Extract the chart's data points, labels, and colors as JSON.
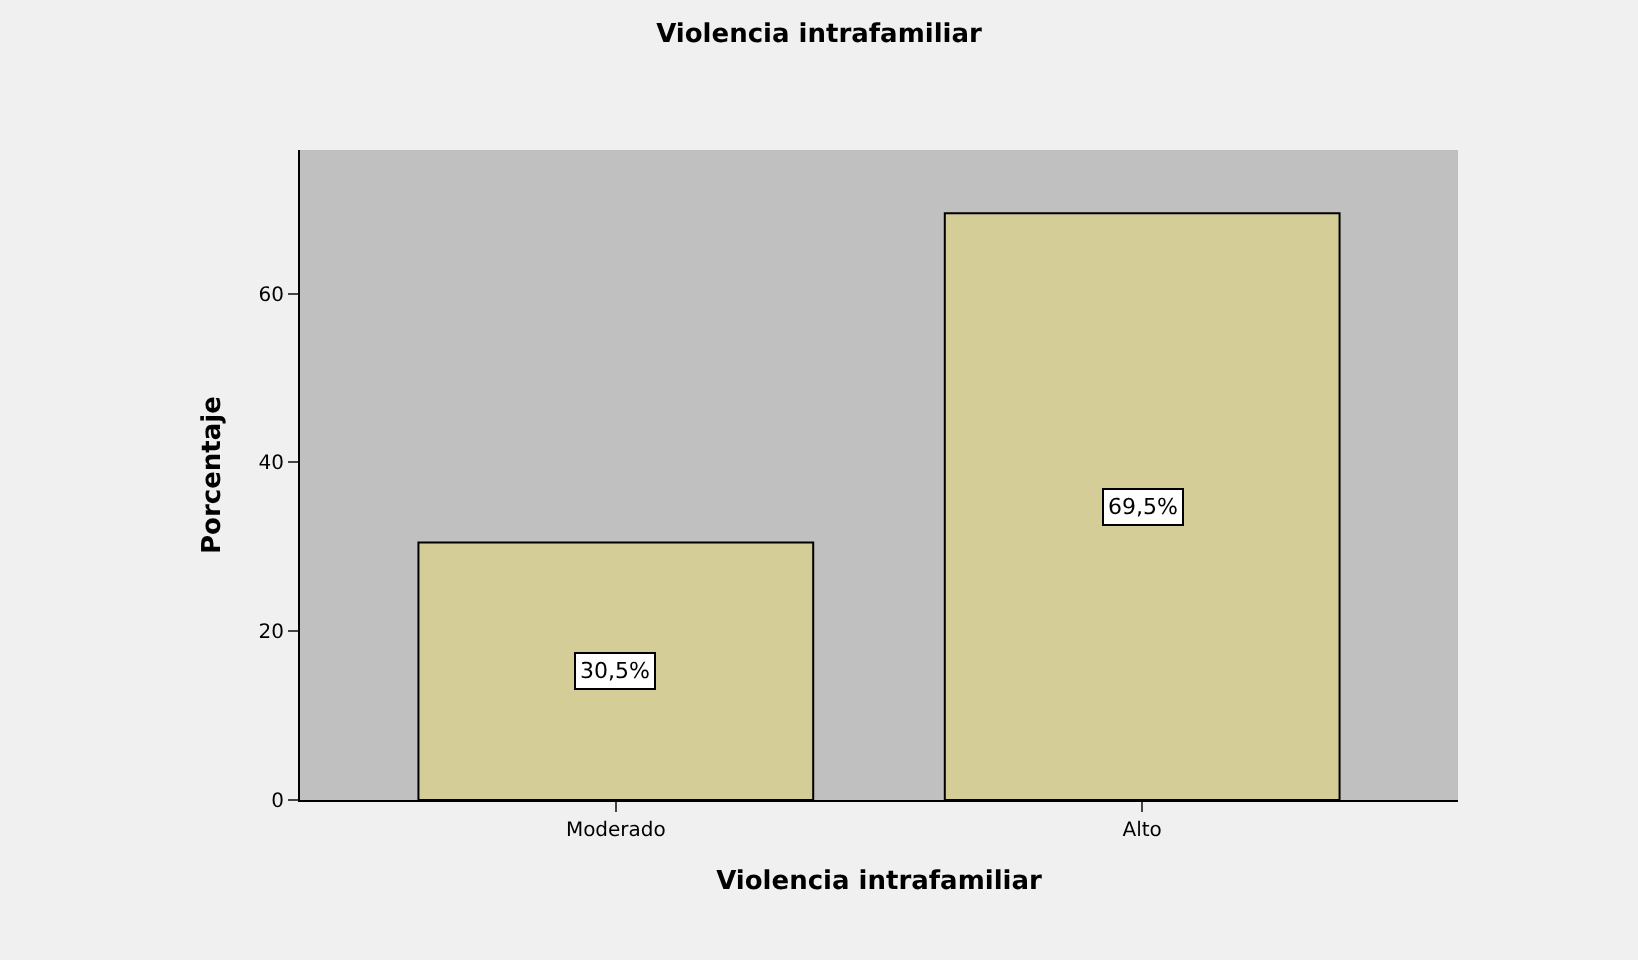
{
  "chart_data": {
    "type": "bar",
    "title": "Violencia intrafamiliar",
    "xlabel": "Violencia intrafamiliar",
    "ylabel": "Porcentaje",
    "categories": [
      "Moderado",
      "Alto"
    ],
    "values": [
      30.5,
      69.5
    ],
    "value_labels": [
      "30,5%",
      "69,5%"
    ],
    "color": "#d4cd98",
    "ylim": [
      0,
      77
    ],
    "yticks": [
      0,
      20,
      40,
      60
    ],
    "grid": false,
    "legend": false
  }
}
